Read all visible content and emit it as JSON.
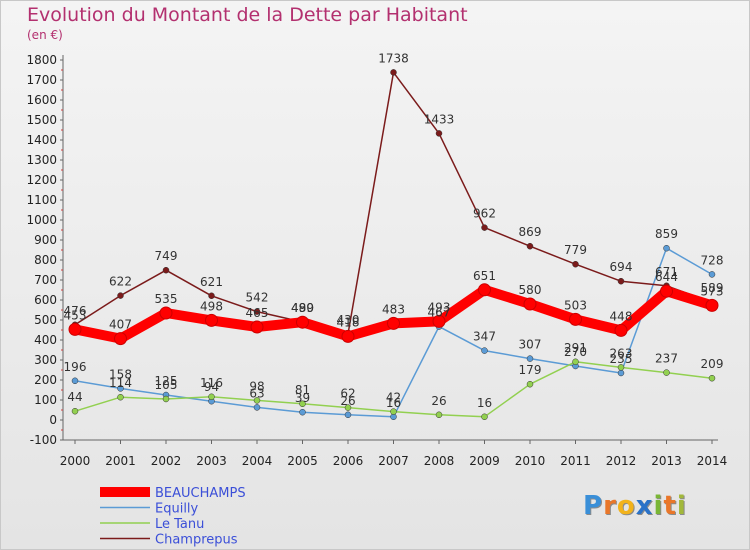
{
  "title": "Evolution du Montant de la Dette par Habitant",
  "unit": "(en €)",
  "logo": "Proxiti",
  "chart_data": {
    "type": "line",
    "x": [
      "2000",
      "2001",
      "2002",
      "2003",
      "2004",
      "2005",
      "2006",
      "2007",
      "2008",
      "2009",
      "2010",
      "2011",
      "2012",
      "2013",
      "2014"
    ],
    "ylim": [
      -100,
      1800
    ],
    "yticks": [
      -100,
      0,
      100,
      200,
      300,
      400,
      500,
      600,
      700,
      800,
      900,
      1000,
      1100,
      1200,
      1300,
      1400,
      1500,
      1600,
      1700,
      1800
    ],
    "grid": false,
    "legend_position": "bottom-left",
    "series": [
      {
        "name": "BEAUCHAMPS",
        "color": "#ff0000",
        "values": [
          453,
          407,
          535,
          498,
          465,
          489,
          418,
          483,
          493,
          651,
          580,
          503,
          448,
          644,
          573
        ]
      },
      {
        "name": "Equilly",
        "color": "#5b9bd5",
        "values": [
          196,
          158,
          125,
          94,
          63,
          39,
          26,
          16,
          467,
          347,
          307,
          270,
          235,
          859,
          728
        ]
      },
      {
        "name": "Le Tanu",
        "color": "#92d050",
        "values": [
          44,
          114,
          105,
          116,
          98,
          81,
          62,
          42,
          26,
          16,
          179,
          291,
          263,
          237,
          209
        ]
      },
      {
        "name": "Champrepus",
        "color": "#7b1b1b",
        "values": [
          476,
          622,
          749,
          621,
          542,
          490,
          430,
          1738,
          1433,
          962,
          869,
          779,
          694,
          671,
          589
        ]
      }
    ]
  }
}
